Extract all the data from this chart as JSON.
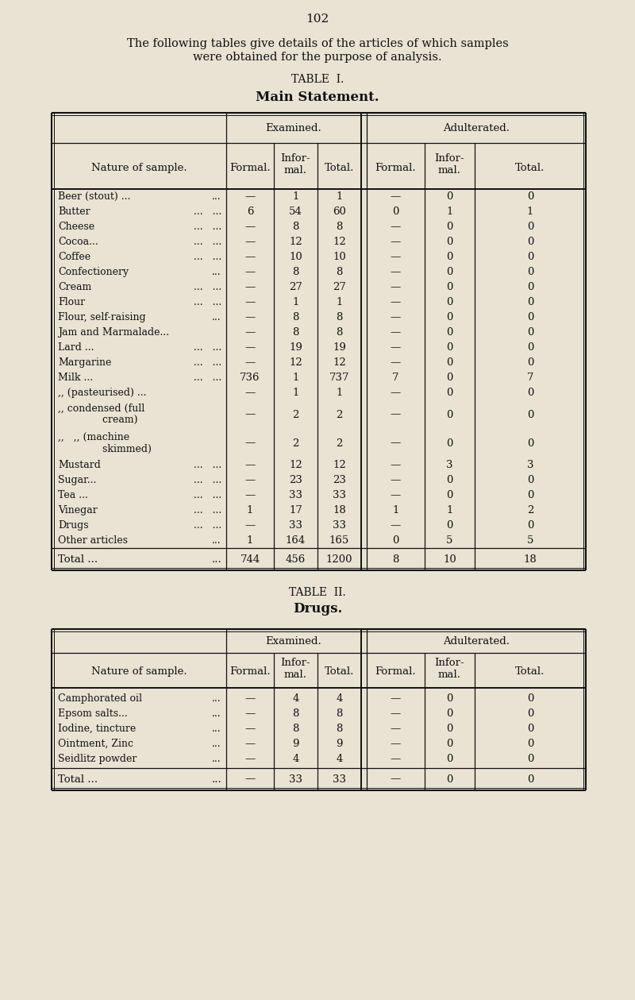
{
  "page_number": "102",
  "bg_color": "#e8e3d3",
  "intro_line1": "The following tables give details of the articles of which samples",
  "intro_line2": "were obtained for the purpose of analysis.",
  "t1_title": "TABLE  I.",
  "t1_subtitle": "Main Statement.",
  "t2_title": "TABLE  II.",
  "t2_subtitle": "Drugs.",
  "col_labels": [
    "Nature of sample.",
    "Formal.",
    "Infor-\nmal.",
    "Total.",
    "Formal.",
    "Infor-\nmal.",
    "Total."
  ],
  "examined_label": "Examined.",
  "adulterated_label": "Adulterated.",
  "table1_rows": [
    [
      "Beer (stout) ...",
      "...",
      "—",
      "1",
      "1",
      "—",
      "0",
      "0"
    ],
    [
      "Butter",
      "...   ...",
      "6",
      "54",
      "60",
      "0",
      "1",
      "1"
    ],
    [
      "Cheese",
      "...   ...",
      "—",
      "8",
      "8",
      "—",
      "0",
      "0"
    ],
    [
      "Cocoa...",
      "...   ...",
      "—",
      "12",
      "12",
      "—",
      "0",
      "0"
    ],
    [
      "Coffee",
      "...   ...",
      "—",
      "10",
      "10",
      "—",
      "0",
      "0"
    ],
    [
      "Confectionery",
      "...",
      "—",
      "8",
      "8",
      "—",
      "0",
      "0"
    ],
    [
      "Cream",
      "...   ...",
      "—",
      "27",
      "27",
      "—",
      "0",
      "0"
    ],
    [
      "Flour",
      "...   ...",
      "—",
      "1",
      "1",
      "—",
      "0",
      "0"
    ],
    [
      "Flour, self-raising",
      "...",
      "—",
      "8",
      "8",
      "—",
      "0",
      "0"
    ],
    [
      "Jam and Marmalade...",
      "",
      "—",
      "8",
      "8",
      "—",
      "0",
      "0"
    ],
    [
      "Lard ...",
      "...   ...",
      "—",
      "19",
      "19",
      "—",
      "0",
      "0"
    ],
    [
      "Margarine",
      "...   ...",
      "—",
      "12",
      "12",
      "—",
      "0",
      "0"
    ],
    [
      "Milk ...",
      "...   ...",
      "736",
      "1",
      "737",
      "7",
      "0",
      "7"
    ],
    [
      ",, (pasteurised) ...",
      "",
      "—",
      "1",
      "1",
      "—",
      "0",
      "0"
    ],
    [
      ",, condensed (full\n              cream)",
      "",
      "—",
      "2",
      "2",
      "—",
      "0",
      "0"
    ],
    [
      ",,   ,, (machine\n              skimmed)",
      "",
      "—",
      "2",
      "2",
      "—",
      "0",
      "0"
    ],
    [
      "Mustard",
      "...   ...",
      "—",
      "12",
      "12",
      "—",
      "3",
      "3"
    ],
    [
      "Sugar...",
      "...   ...",
      "—",
      "23",
      "23",
      "—",
      "0",
      "0"
    ],
    [
      "Tea ...",
      "...   ...",
      "—",
      "33",
      "33",
      "—",
      "0",
      "0"
    ],
    [
      "Vinegar",
      "...   ...",
      "1",
      "17",
      "18",
      "1",
      "1",
      "2"
    ],
    [
      "Drugs",
      "...   ...",
      "—",
      "33",
      "33",
      "—",
      "0",
      "0"
    ],
    [
      "Other articles",
      "...",
      "1",
      "164",
      "165",
      "0",
      "5",
      "5"
    ]
  ],
  "table1_total": [
    "Total ...",
    "...",
    "744",
    "456",
    "1200",
    "8",
    "10",
    "18"
  ],
  "table2_rows": [
    [
      "Camphorated oil",
      "...",
      "—",
      "4",
      "4",
      "—",
      "0",
      "0"
    ],
    [
      "Epsom salts...",
      "...",
      "—",
      "8",
      "8",
      "—",
      "0",
      "0"
    ],
    [
      "Iodine, tincture",
      "...",
      "—",
      "8",
      "8",
      "—",
      "0",
      "0"
    ],
    [
      "Ointment, Zinc",
      "...",
      "—",
      "9",
      "9",
      "—",
      "0",
      "0"
    ],
    [
      "Seidlitz powder",
      "...",
      "—",
      "4",
      "4",
      "—",
      "0",
      "0"
    ]
  ],
  "table2_total": [
    "Total ...",
    "...",
    "—",
    "33",
    "33",
    "—",
    "0",
    "0"
  ]
}
